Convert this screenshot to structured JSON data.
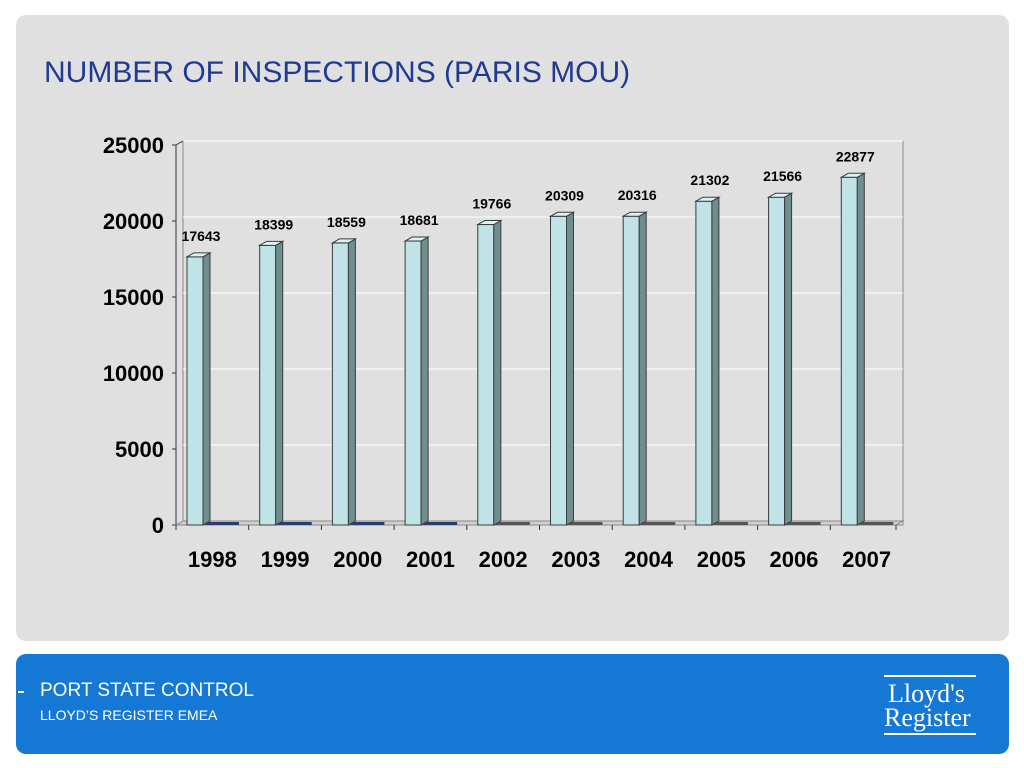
{
  "slide": {
    "title": "NUMBER OF INSPECTIONS (PARIS MOU)"
  },
  "footer": {
    "title": "PORT STATE CONTROL",
    "subtitle": "LLOYD’S REGISTER EMEA",
    "logo_text_line1": "Lloyd's",
    "logo_text_line2": "Register"
  },
  "colors": {
    "title": "#1f3a93",
    "panel": "#e0e0e0",
    "footer": "#1478d4",
    "bar_front": "#bfe3e6",
    "bar_side": "#6f8e90",
    "bar_top": "#dff2f3"
  },
  "chart_data": {
    "type": "bar",
    "categories": [
      "1998",
      "1999",
      "2000",
      "2001",
      "2002",
      "2003",
      "2004",
      "2005",
      "2006",
      "2007"
    ],
    "series": [
      {
        "values": [
          17643,
          18399,
          18559,
          18681,
          19766,
          20309,
          20316,
          21302,
          21566,
          22877
        ]
      }
    ],
    "data_labels": [
      "17643",
      "18399",
      "18559",
      "18681",
      "19766",
      "20309",
      "20316",
      "21302",
      "21566",
      "22877"
    ],
    "ylim": [
      0,
      25000
    ],
    "yticks": [
      "0",
      "5000",
      "10000",
      "15000",
      "20000",
      "25000"
    ],
    "grid": true,
    "three_d": true,
    "title": "",
    "xlabel": "",
    "ylabel": ""
  }
}
